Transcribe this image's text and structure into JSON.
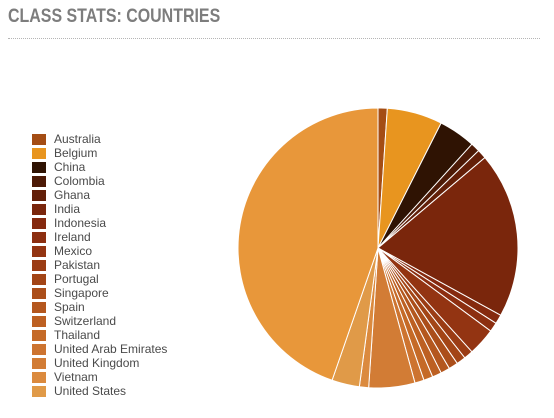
{
  "header": {
    "title": "CLASS STATS: COUNTRIES"
  },
  "chart_data": {
    "type": "pie",
    "legend_position": "left",
    "start_angle": "12 o'clock, clockwise",
    "slices": [
      {
        "label": "Australia",
        "value": 1,
        "color": "#a44d14"
      },
      {
        "label": "Belgium",
        "value": 6,
        "color": "#e8951f"
      },
      {
        "label": "China",
        "value": 4,
        "color": "#2f1303"
      },
      {
        "label": "Colombia",
        "value": 1,
        "color": "#4d1a06"
      },
      {
        "label": "Ghana",
        "value": 1,
        "color": "#631f08"
      },
      {
        "label": "India",
        "value": 18,
        "color": "#7a260c"
      },
      {
        "label": "Indonesia",
        "value": 1,
        "color": "#85290e"
      },
      {
        "label": "Ireland",
        "value": 1,
        "color": "#8c2e10"
      },
      {
        "label": "Mexico",
        "value": 3,
        "color": "#933412"
      },
      {
        "label": "Pakistan",
        "value": 1,
        "color": "#9b3c14"
      },
      {
        "label": "Portugal",
        "value": 1,
        "color": "#a34516"
      },
      {
        "label": "Singapore",
        "value": 1,
        "color": "#ab4e1a"
      },
      {
        "label": "Spain",
        "value": 1,
        "color": "#b4571e"
      },
      {
        "label": "Switzerland",
        "value": 1,
        "color": "#bd6022"
      },
      {
        "label": "Thailand",
        "value": 1,
        "color": "#c56a27"
      },
      {
        "label": "United Arab Emirates",
        "value": 1,
        "color": "#cd7430"
      },
      {
        "label": "United Kingdom",
        "value": 5,
        "color": "#d27c35"
      },
      {
        "label": "Vietnam",
        "value": 1,
        "color": "#db8a3e"
      },
      {
        "label": "United States",
        "value": 3,
        "color": "#e09a48"
      },
      {
        "label": "United States",
        "value": 42,
        "color": "#e8973a"
      }
    ]
  }
}
